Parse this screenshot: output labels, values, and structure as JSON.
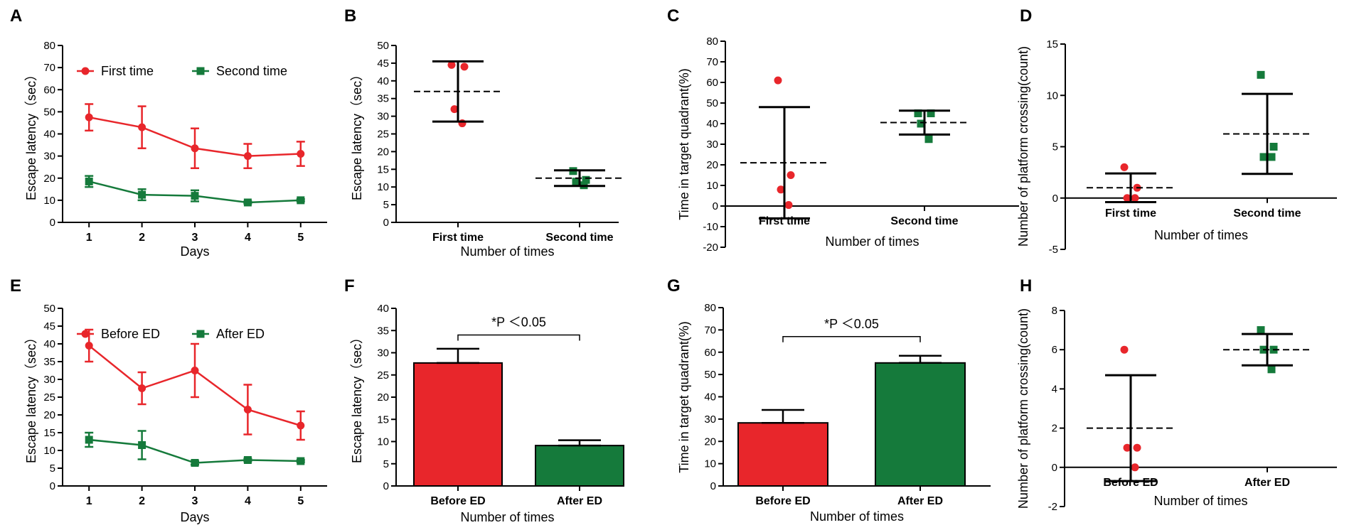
{
  "figure": {
    "colors": {
      "red": "#e8262b",
      "green": "#157a3b",
      "axis": "#000000"
    }
  },
  "chart_data": [
    {
      "panel": "A",
      "type": "line",
      "xlabel": "Days",
      "ylabel": "Escape latency（sec）",
      "x": [
        1,
        2,
        3,
        4,
        5
      ],
      "x_ticks": [
        "1",
        "2",
        "3",
        "4",
        "5"
      ],
      "xlim": [
        0.5,
        5.5
      ],
      "ylim": [
        0,
        80
      ],
      "y_ticks": [
        "0",
        "10",
        "20",
        "30",
        "40",
        "50",
        "60",
        "70",
        "80"
      ],
      "legend_position": "top",
      "series": [
        {
          "name": "First time",
          "color": "#e8262b",
          "marker": "circle",
          "values": [
            47.5,
            43,
            33.5,
            30,
            31
          ],
          "errors": [
            6,
            9.5,
            9,
            5.5,
            5.5
          ]
        },
        {
          "name": "Second time",
          "color": "#157a3b",
          "marker": "square",
          "values": [
            18.5,
            12.5,
            12,
            9,
            10
          ],
          "errors": [
            2.5,
            2.5,
            2.5,
            0.5,
            0.5
          ]
        }
      ]
    },
    {
      "panel": "B",
      "type": "scatter",
      "xlabel": "Number of times",
      "ylabel": "Escape latency（sec）",
      "categories": [
        "First time",
        "Second time"
      ],
      "ylim": [
        0,
        50
      ],
      "y_ticks": [
        "0",
        "5",
        "10",
        "15",
        "20",
        "25",
        "30",
        "35",
        "40",
        "45",
        "50"
      ],
      "groups": [
        {
          "name": "First time",
          "color": "#e8262b",
          "marker": "circle",
          "points": [
            44.5,
            44,
            32,
            28
          ],
          "mean": 37,
          "error": 8.5
        },
        {
          "name": "Second time",
          "color": "#157a3b",
          "marker": "square",
          "points": [
            14.5,
            12,
            11.5,
            10.5
          ],
          "mean": 12.5,
          "error": 2.2
        }
      ]
    },
    {
      "panel": "C",
      "type": "scatter",
      "xlabel": "Number of times",
      "ylabel": "Time in target quadrant(%)",
      "categories": [
        "First time",
        "Second time"
      ],
      "ylim": [
        -20,
        80
      ],
      "y_ticks": [
        "-20",
        "-10",
        "0",
        "10",
        "20",
        "30",
        "40",
        "50",
        "60",
        "70",
        "80"
      ],
      "groups": [
        {
          "name": "First time",
          "color": "#e8262b",
          "marker": "circle",
          "points": [
            61,
            15,
            8,
            0.5
          ],
          "mean": 21,
          "error": 27
        },
        {
          "name": "Second time",
          "color": "#157a3b",
          "marker": "square",
          "points": [
            45,
            45,
            40,
            32.5
          ],
          "mean": 40.5,
          "error": 5.8
        }
      ]
    },
    {
      "panel": "D",
      "type": "scatter",
      "xlabel": "Number of times",
      "ylabel": "Number of platform crossing(count)",
      "categories": [
        "First time",
        "Second time"
      ],
      "ylim": [
        -5,
        15
      ],
      "y_ticks": [
        "-5",
        "0",
        "5",
        "10",
        "15"
      ],
      "groups": [
        {
          "name": "First time",
          "color": "#e8262b",
          "marker": "circle",
          "points": [
            3,
            1,
            0,
            0
          ],
          "mean": 1,
          "error": 1.4
        },
        {
          "name": "Second time",
          "color": "#157a3b",
          "marker": "square",
          "points": [
            12,
            5,
            4,
            4
          ],
          "mean": 6.25,
          "error": 3.9
        }
      ]
    },
    {
      "panel": "E",
      "type": "line",
      "xlabel": "Days",
      "ylabel": "Escape latency（sec）",
      "x": [
        1,
        2,
        3,
        4,
        5
      ],
      "x_ticks": [
        "1",
        "2",
        "3",
        "4",
        "5"
      ],
      "xlim": [
        0.5,
        5.5
      ],
      "ylim": [
        0,
        50
      ],
      "y_ticks": [
        "0",
        "5",
        "10",
        "15",
        "20",
        "25",
        "30",
        "35",
        "40",
        "45",
        "50"
      ],
      "legend_position": "top",
      "series": [
        {
          "name": "Before ED",
          "color": "#e8262b",
          "marker": "circle",
          "values": [
            39.5,
            27.5,
            32.5,
            21.5,
            17
          ],
          "errors": [
            4.5,
            4.5,
            7.5,
            7,
            4
          ]
        },
        {
          "name": "After ED",
          "color": "#157a3b",
          "marker": "square",
          "values": [
            13,
            11.5,
            6.5,
            7.3,
            7
          ],
          "errors": [
            2,
            4,
            0.5,
            0.4,
            0.3
          ]
        }
      ]
    },
    {
      "panel": "F",
      "type": "bar",
      "xlabel": "Number of times",
      "ylabel": "Escape latency（sec）",
      "categories": [
        "Before ED",
        "After ED"
      ],
      "ylim": [
        0,
        40
      ],
      "y_ticks": [
        "0",
        "5",
        "10",
        "15",
        "20",
        "25",
        "30",
        "35",
        "40"
      ],
      "values": [
        27.7,
        9.1
      ],
      "errors": [
        3.2,
        1.2
      ],
      "colors": [
        "#e8262b",
        "#157a3b"
      ],
      "annotation": {
        "text": "*P ＜0.05",
        "y": 34
      }
    },
    {
      "panel": "G",
      "type": "bar",
      "xlabel": "Number of times",
      "ylabel": "Time in target quadrant(%)",
      "categories": [
        "Before ED",
        "After ED"
      ],
      "ylim": [
        0,
        80
      ],
      "y_ticks": [
        "0",
        "10",
        "20",
        "30",
        "40",
        "50",
        "60",
        "70",
        "80"
      ],
      "values": [
        28.3,
        55.2
      ],
      "errors": [
        5.8,
        3.2
      ],
      "colors": [
        "#e8262b",
        "#157a3b"
      ],
      "annotation": {
        "text": "*P ＜0.05",
        "y": 67
      }
    },
    {
      "panel": "H",
      "type": "scatter",
      "xlabel": "Number of times",
      "ylabel": "Number of platform crossing(count)",
      "categories": [
        "Before ED",
        "After ED"
      ],
      "ylim": [
        -2,
        8
      ],
      "y_ticks": [
        "-2",
        "0",
        "2",
        "4",
        "6",
        "8"
      ],
      "groups": [
        {
          "name": "Before ED",
          "color": "#e8262b",
          "marker": "circle",
          "points": [
            6,
            1,
            1,
            0
          ],
          "mean": 2,
          "error": 2.7
        },
        {
          "name": "After ED",
          "color": "#157a3b",
          "marker": "square",
          "points": [
            7,
            6,
            6,
            5
          ],
          "mean": 6,
          "error": 0.8
        }
      ]
    }
  ]
}
